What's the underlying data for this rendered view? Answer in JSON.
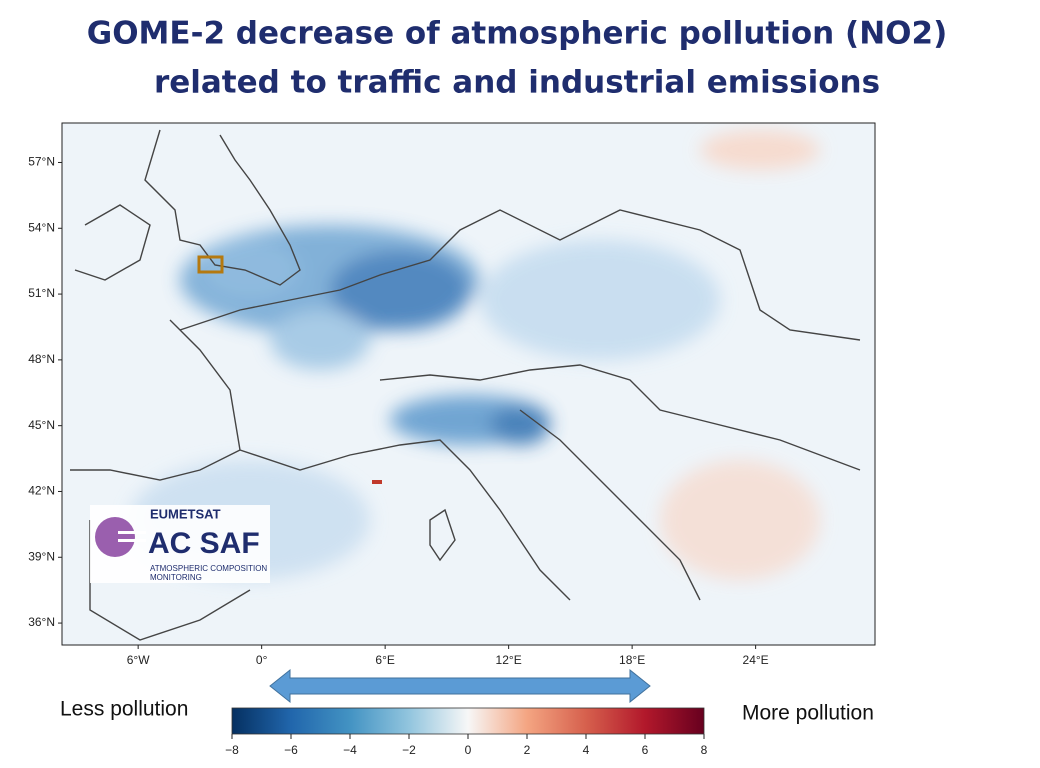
{
  "title": [
    "GOME-2 decrease of atmospheric pollution (NO2)",
    "related to traffic and industrial emissions"
  ],
  "map": {
    "xlim": [
      -9.7,
      29.8
    ],
    "ylim": [
      35,
      58.8
    ],
    "xticks": [
      {
        "value": -6,
        "label": "6°W"
      },
      {
        "value": 0,
        "label": "0°"
      },
      {
        "value": 6,
        "label": "6°E"
      },
      {
        "value": 12,
        "label": "12°E"
      },
      {
        "value": 18,
        "label": "18°E"
      },
      {
        "value": 24,
        "label": "24°E"
      }
    ],
    "yticks": [
      {
        "value": 36,
        "label": "36°N"
      },
      {
        "value": 39,
        "label": "39°N"
      },
      {
        "value": 42,
        "label": "42°N"
      },
      {
        "value": 45,
        "label": "45°N"
      },
      {
        "value": 48,
        "label": "48°N"
      },
      {
        "value": 51,
        "label": "51°N"
      },
      {
        "value": 54,
        "label": "54°N"
      },
      {
        "value": 57,
        "label": "57°N"
      }
    ]
  },
  "colorbar": {
    "lim": [
      -8,
      8
    ],
    "ticks": [
      {
        "value": -8,
        "label": "−8"
      },
      {
        "value": -6,
        "label": "−6"
      },
      {
        "value": -4,
        "label": "−4"
      },
      {
        "value": -2,
        "label": "−2"
      },
      0,
      2,
      4,
      6,
      8
    ]
  },
  "labels": {
    "less": "Less pollution",
    "more": "More pollution"
  },
  "logo": {
    "org": "EUMETSAT",
    "name": "AC SAF",
    "line1": "ATMOSPHERIC COMPOSITION",
    "line2": "MONITORING"
  }
}
